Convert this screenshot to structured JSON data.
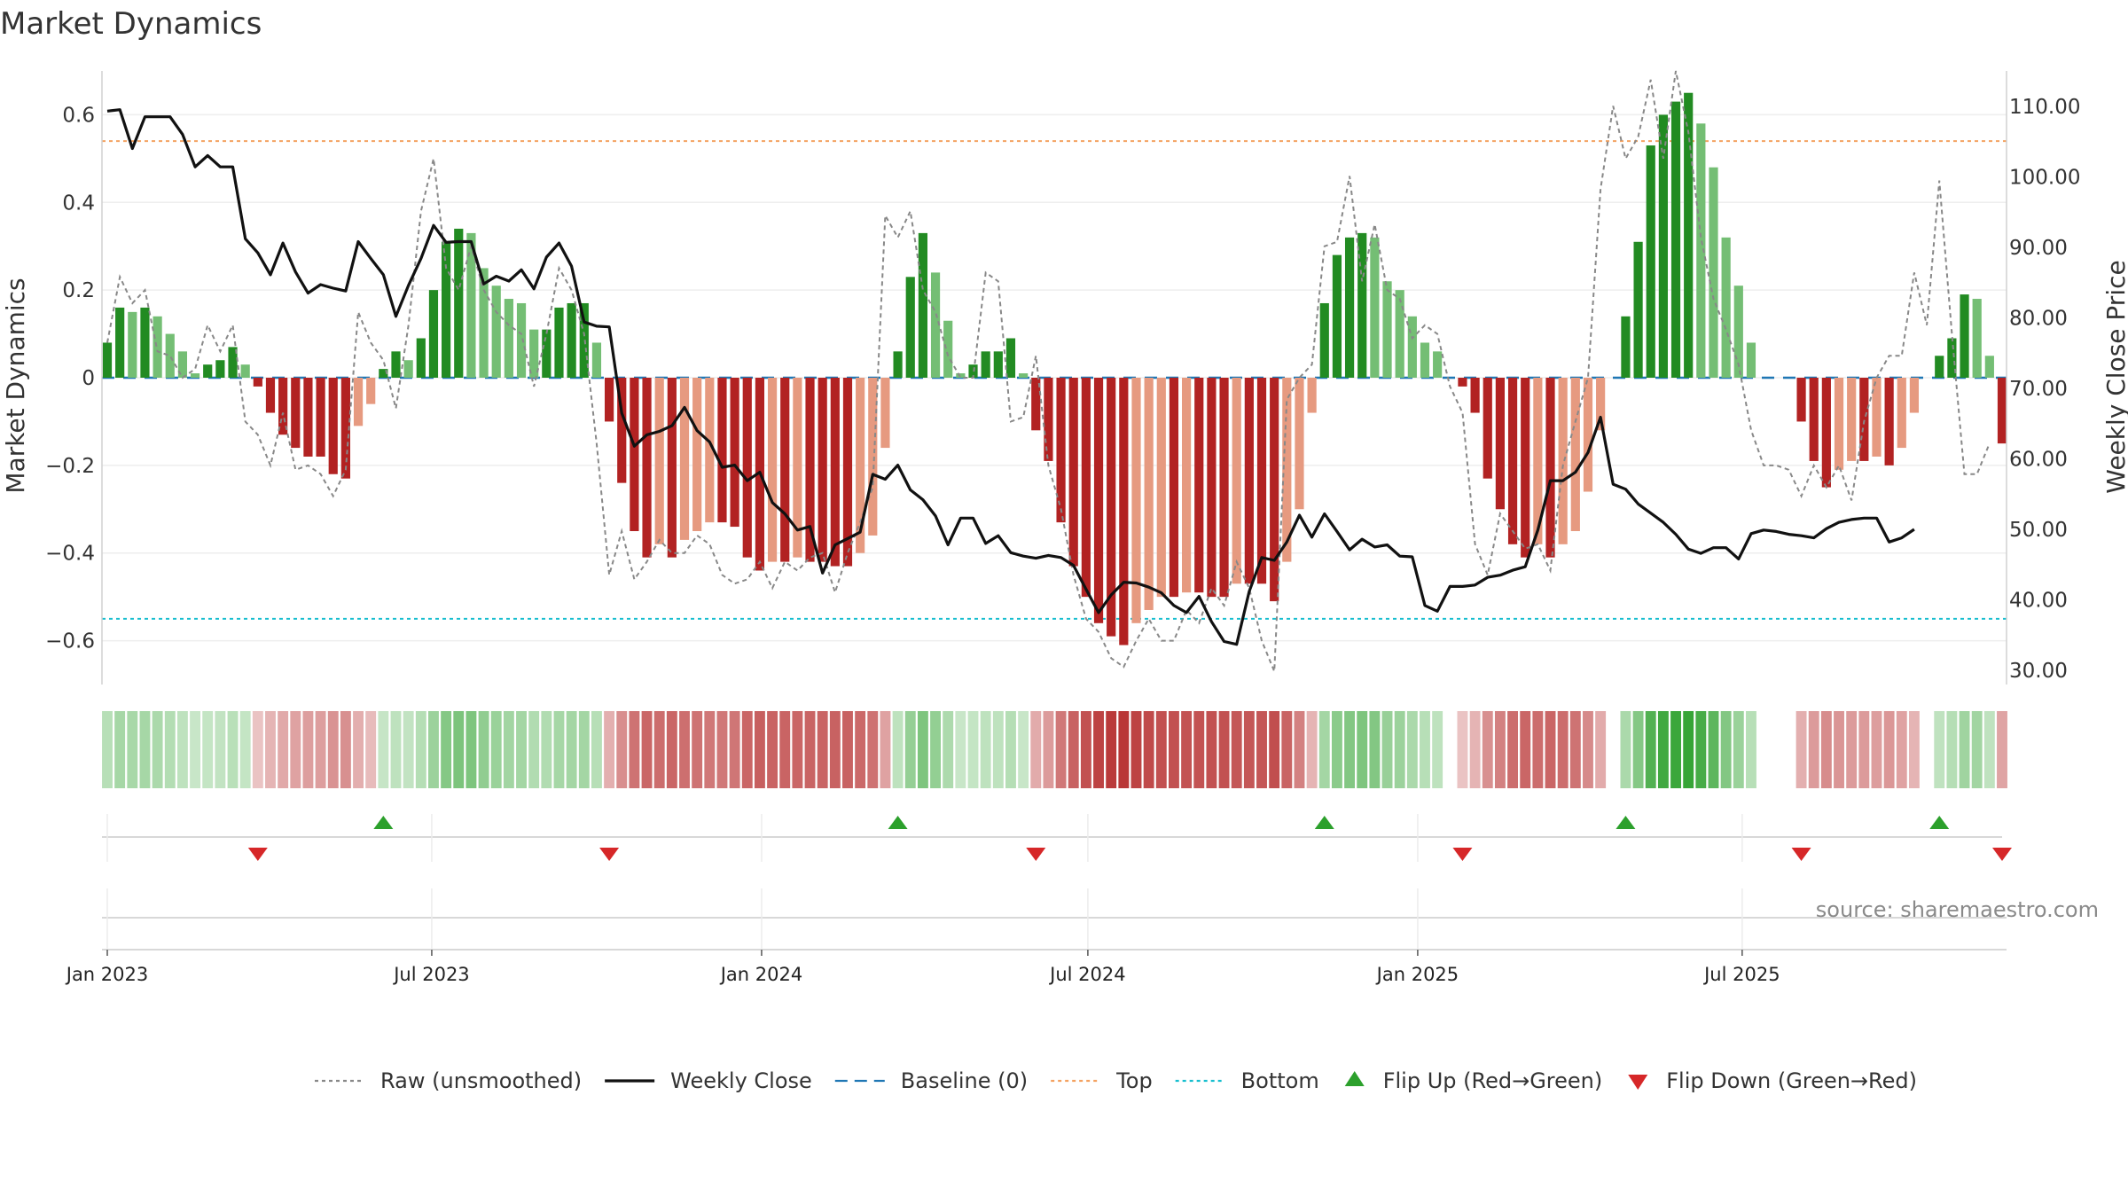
{
  "title": "Market Dynamics",
  "source": "source: sharemaestro.com",
  "colors": {
    "strong_green": "#228B22",
    "light_green": "#74BE74",
    "strong_red": "#B22222",
    "light_red": "#E69A80",
    "close": "#111111",
    "raw": "#888888",
    "baseline": "#1F77B4",
    "top": "#F4A261",
    "bottom": "#17BECF",
    "flip_up": "#2CA02C",
    "flip_down": "#D62728"
  },
  "legend": [
    {
      "key": "raw",
      "label": "Raw (unsmoothed)",
      "style": "dotted"
    },
    {
      "key": "close",
      "label": "Weekly Close",
      "style": "solid"
    },
    {
      "key": "baseline",
      "label": "Baseline (0)",
      "style": "dashed"
    },
    {
      "key": "top",
      "label": "Top",
      "style": "dotted"
    },
    {
      "key": "bottom",
      "label": "Bottom",
      "style": "dotted"
    },
    {
      "key": "flip_up",
      "label": "Flip Up (Red→Green)",
      "style": "up"
    },
    {
      "key": "flip_down",
      "label": "Flip Down (Green→Red)",
      "style": "down"
    }
  ],
  "chart_data": {
    "type": "bar",
    "x_start": "2023-01-01",
    "x_step_weeks": 1,
    "x_ticks": [
      "Jan 2023",
      "Jul 2023",
      "Jan 2024",
      "Jul 2024",
      "Jan 2025",
      "Jul 2025"
    ],
    "left_axis": {
      "label": "Market Dynamics",
      "ylim": [
        -0.7,
        0.7
      ],
      "ticks": [
        0.6,
        0.4,
        0.2,
        0,
        -0.2,
        -0.4,
        -0.6
      ],
      "tick_labels": [
        "0.6",
        "0.4",
        "0.2",
        "0",
        "−0.2",
        "−0.4",
        "−0.6"
      ]
    },
    "right_axis": {
      "label": "Weekly Close Price",
      "ylim": [
        28,
        115
      ],
      "ticks": [
        110,
        100,
        90,
        80,
        70,
        60,
        50,
        40,
        30
      ],
      "tick_labels": [
        "110.00",
        "100.00",
        "90.00",
        "80.00",
        "70.00",
        "60.00",
        "50.00",
        "40.00",
        "30.00"
      ]
    },
    "top_level": 0.54,
    "bottom_level": -0.55,
    "grid": true,
    "legend_position": "bottom",
    "bars": [
      0.08,
      0.16,
      0.15,
      0.16,
      0.14,
      0.1,
      0.06,
      0.01,
      0.03,
      0.04,
      0.07,
      0.03,
      -0.02,
      -0.08,
      -0.13,
      -0.16,
      -0.18,
      -0.18,
      -0.22,
      -0.23,
      -0.11,
      -0.06,
      0.02,
      0.06,
      0.04,
      0.09,
      0.2,
      0.31,
      0.34,
      0.33,
      0.25,
      0.21,
      0.18,
      0.17,
      0.11,
      0.11,
      0.16,
      0.17,
      0.17,
      0.08,
      -0.1,
      -0.24,
      -0.35,
      -0.41,
      -0.38,
      -0.41,
      -0.37,
      -0.35,
      -0.33,
      -0.33,
      -0.34,
      -0.41,
      -0.44,
      -0.42,
      -0.42,
      -0.41,
      -0.42,
      -0.42,
      -0.43,
      -0.43,
      -0.4,
      -0.36,
      -0.16,
      0.06,
      0.23,
      0.33,
      0.24,
      0.13,
      0.01,
      0.03,
      0.06,
      0.06,
      0.09,
      0.01,
      -0.12,
      -0.19,
      -0.33,
      -0.43,
      -0.5,
      -0.56,
      -0.59,
      -0.61,
      -0.56,
      -0.53,
      -0.5,
      -0.5,
      -0.49,
      -0.49,
      -0.5,
      -0.5,
      -0.47,
      -0.47,
      -0.47,
      -0.51,
      -0.42,
      -0.3,
      -0.08,
      0.17,
      0.28,
      0.32,
      0.33,
      0.32,
      0.22,
      0.2,
      0.14,
      0.08,
      0.06,
      0.0,
      -0.02,
      -0.08,
      -0.23,
      -0.3,
      -0.38,
      -0.41,
      -0.38,
      -0.41,
      -0.38,
      -0.35,
      -0.26,
      -0.12,
      0.0,
      0.14,
      0.31,
      0.53,
      0.6,
      0.63,
      0.65,
      0.58,
      0.48,
      0.32,
      0.21,
      0.08,
      0.0,
      0.0,
      0.0,
      -0.1,
      -0.19,
      -0.25,
      -0.21,
      -0.19,
      -0.19,
      -0.18,
      -0.2,
      -0.16,
      -0.08,
      0.0,
      0.05,
      0.09,
      0.19,
      0.18,
      0.05,
      -0.15
    ],
    "raw": [
      0.08,
      0.23,
      0.17,
      0.2,
      0.06,
      0.05,
      0.0,
      0.02,
      0.12,
      0.06,
      0.12,
      -0.1,
      -0.13,
      -0.2,
      -0.08,
      -0.21,
      -0.2,
      -0.22,
      -0.27,
      -0.21,
      0.15,
      0.08,
      0.04,
      -0.07,
      0.12,
      0.38,
      0.5,
      0.25,
      0.2,
      0.3,
      0.2,
      0.15,
      0.12,
      0.1,
      -0.02,
      0.1,
      0.25,
      0.2,
      0.1,
      -0.15,
      -0.45,
      -0.35,
      -0.46,
      -0.42,
      -0.37,
      -0.4,
      -0.4,
      -0.36,
      -0.38,
      -0.45,
      -0.47,
      -0.46,
      -0.42,
      -0.48,
      -0.42,
      -0.44,
      -0.41,
      -0.4,
      -0.49,
      -0.4,
      -0.33,
      -0.25,
      0.37,
      0.32,
      0.38,
      0.2,
      0.15,
      0.05,
      0.0,
      0.0,
      0.24,
      0.22,
      -0.1,
      -0.09,
      0.05,
      -0.2,
      -0.3,
      -0.45,
      -0.55,
      -0.58,
      -0.64,
      -0.66,
      -0.6,
      -0.55,
      -0.6,
      -0.6,
      -0.53,
      -0.56,
      -0.48,
      -0.52,
      -0.42,
      -0.48,
      -0.6,
      -0.67,
      -0.05,
      0.0,
      0.03,
      0.3,
      0.31,
      0.46,
      0.22,
      0.35,
      0.2,
      0.18,
      0.09,
      0.12,
      0.1,
      -0.02,
      -0.08,
      -0.38,
      -0.45,
      -0.31,
      -0.35,
      -0.39,
      -0.38,
      -0.44,
      -0.2,
      -0.1,
      0.0,
      0.43,
      0.62,
      0.5,
      0.55,
      0.68,
      0.5,
      0.7,
      0.56,
      0.32,
      0.18,
      0.11,
      0.03,
      -0.12,
      -0.2,
      -0.2,
      -0.21,
      -0.27,
      -0.2,
      -0.25,
      -0.2,
      -0.28,
      -0.1,
      0.0,
      0.05,
      0.05,
      0.24,
      0.12,
      0.45,
      0.1,
      -0.22,
      -0.22,
      -0.15
    ],
    "close": [
      109.3,
      109.5,
      104,
      108.5,
      108.5,
      108.5,
      106,
      101.4,
      103,
      101.4,
      101.4,
      91.2,
      89.2,
      86.1,
      90.6,
      86.5,
      83.5,
      84.7,
      84.2,
      83.8,
      90.8,
      88.4,
      86.1,
      80.2,
      84.6,
      88.4,
      93.1,
      90.7,
      90.8,
      90.8,
      84.8,
      85.9,
      85.2,
      86.8,
      84.1,
      88.6,
      90.6,
      87.3,
      79.4,
      78.8,
      78.7,
      66.5,
      61.8,
      63.4,
      63.9,
      64.7,
      67.3,
      64,
      62.4,
      58.8,
      59.1,
      56.9,
      58.1,
      53.8,
      52.2,
      49.9,
      50.4,
      43.8,
      47.8,
      48.7,
      49.6,
      57.8,
      57.1,
      59.1,
      55.6,
      54.2,
      51.9,
      47.8,
      51.6,
      51.6,
      48,
      49.1,
      46.7,
      46.2,
      45.9,
      46.3,
      46,
      44.9,
      41.5,
      38.2,
      40.7,
      42.5,
      42.4,
      41.8,
      41,
      39.2,
      38.2,
      40.5,
      36.9,
      34.1,
      33.7,
      41.2,
      46,
      45.6,
      48.2,
      52,
      48.9,
      52.2,
      49.7,
      47.1,
      48.6,
      47.5,
      47.8,
      46.2,
      46.1,
      39.2,
      38.4,
      41.9,
      41.9,
      42.1,
      43.2,
      43.5,
      44.2,
      44.7,
      49.9,
      56.9,
      56.9,
      58.1,
      60.9,
      65.9,
      56.4,
      55.7,
      53.6,
      52.3,
      51,
      49.3,
      47.2,
      46.6,
      47.4,
      47.4,
      45.8,
      49.4,
      49.9,
      49.7,
      49.3,
      49.1,
      48.8,
      50.1,
      51,
      51.4,
      51.6,
      51.6,
      48.2,
      48.8,
      50
    ]
  }
}
